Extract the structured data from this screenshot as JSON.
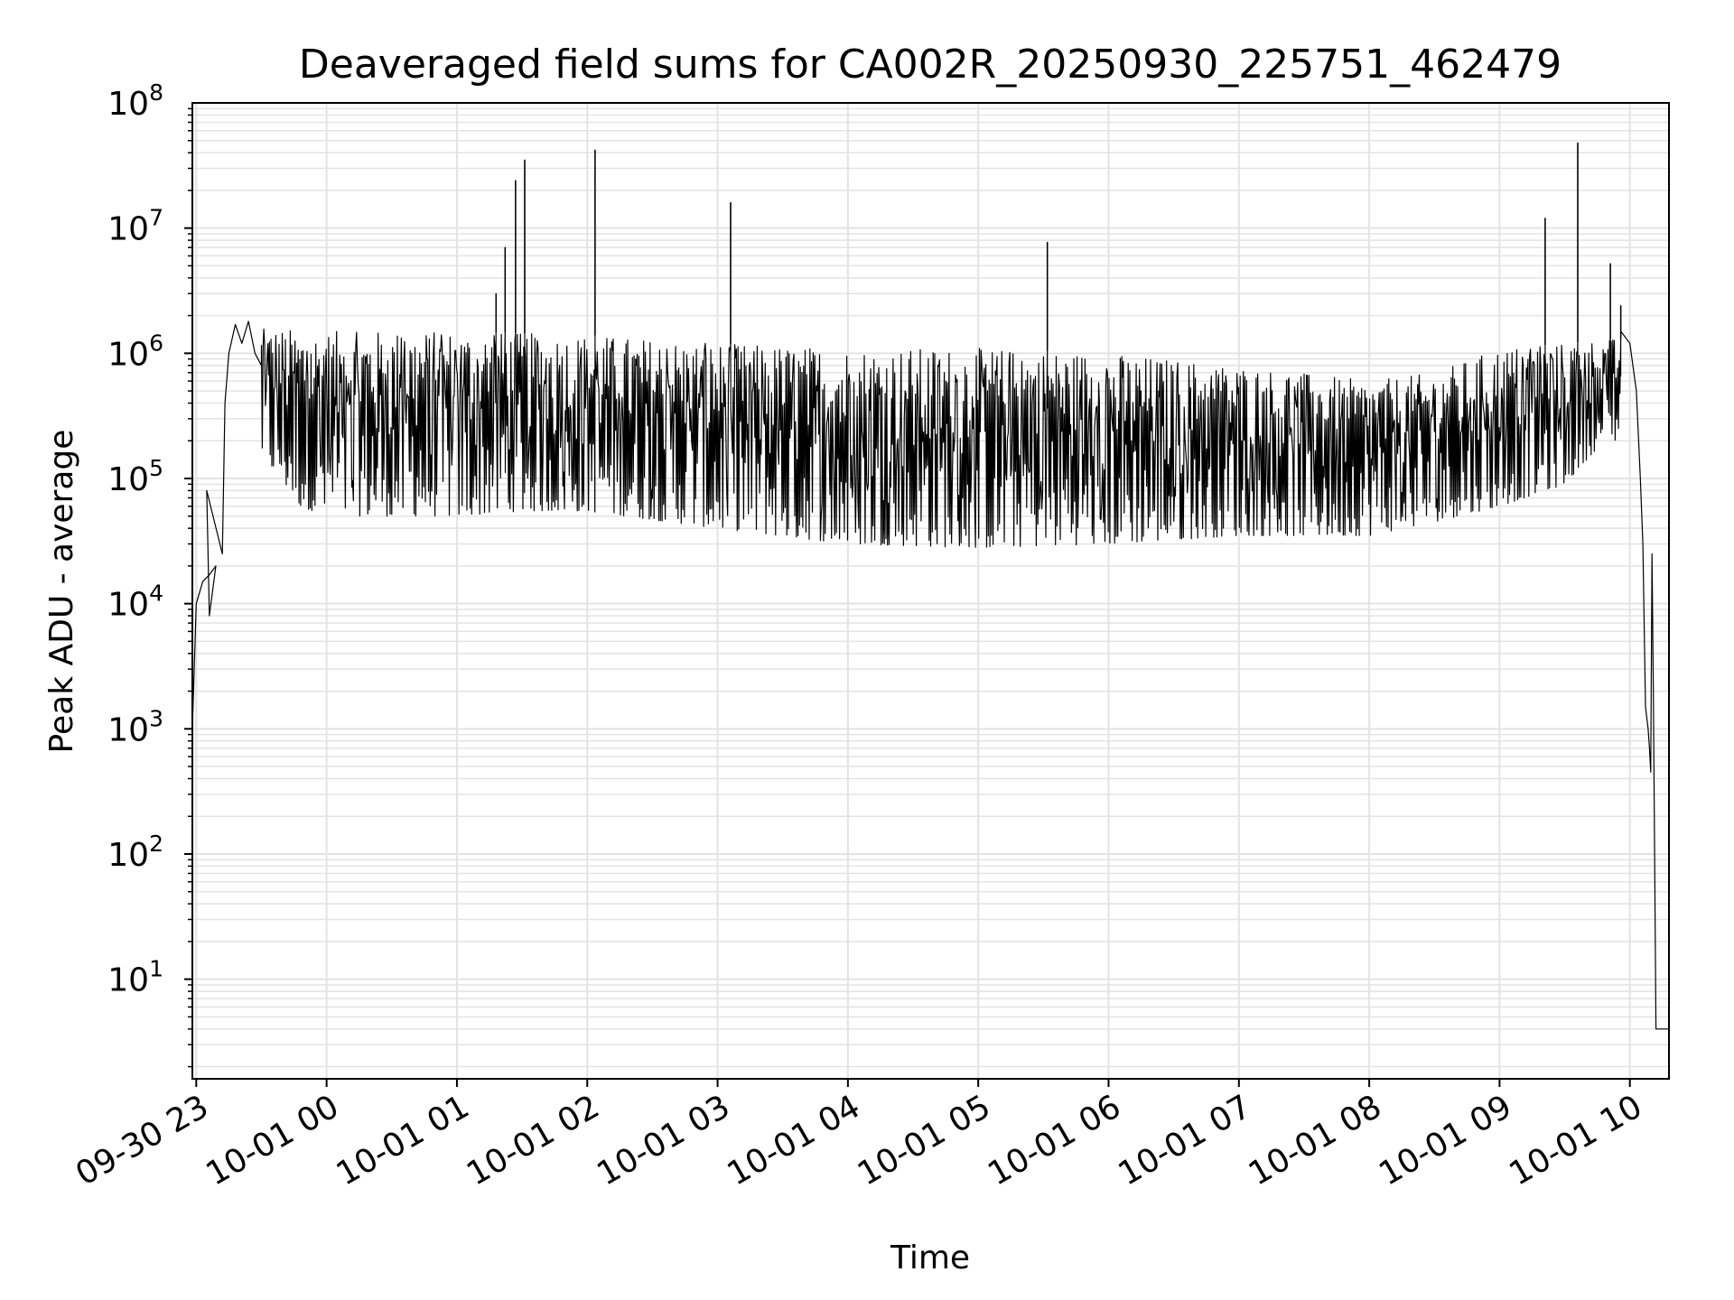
{
  "chart_data": {
    "type": "line",
    "title": "Deaveraged field sums for CA002R_20250930_225751_462479",
    "xlabel": "Time",
    "ylabel": "Peak ADU - average",
    "yscale": "log",
    "ylim": [
      1.6,
      100000000
    ],
    "xlim_hours": [
      -0.03,
      11.3
    ],
    "x_axis_origin": "2025-09-30 23:00",
    "grid": true,
    "legend": "none",
    "line_color": "#000000",
    "grid_color": "#e3e3e3",
    "x_ticks": [
      {
        "hour": 0,
        "label": "09-30 23"
      },
      {
        "hour": 1,
        "label": "10-01 00"
      },
      {
        "hour": 2,
        "label": "10-01 01"
      },
      {
        "hour": 3,
        "label": "10-01 02"
      },
      {
        "hour": 4,
        "label": "10-01 03"
      },
      {
        "hour": 5,
        "label": "10-01 04"
      },
      {
        "hour": 6,
        "label": "10-01 05"
      },
      {
        "hour": 7,
        "label": "10-01 06"
      },
      {
        "hour": 8,
        "label": "10-01 07"
      },
      {
        "hour": 9,
        "label": "10-01 08"
      },
      {
        "hour": 10,
        "label": "10-01 09"
      },
      {
        "hour": 11,
        "label": "10-01 10"
      }
    ],
    "y_ticks": [
      {
        "value": 10,
        "base": "10",
        "exp": "1"
      },
      {
        "value": 100,
        "base": "10",
        "exp": "2"
      },
      {
        "value": 1000,
        "base": "10",
        "exp": "3"
      },
      {
        "value": 10000,
        "base": "10",
        "exp": "4"
      },
      {
        "value": 100000,
        "base": "10",
        "exp": "5"
      },
      {
        "value": 1000000,
        "base": "10",
        "exp": "6"
      },
      {
        "value": 10000000,
        "base": "10",
        "exp": "7"
      },
      {
        "value": 100000000,
        "base": "10",
        "exp": "8"
      }
    ],
    "band": {
      "description": "dense oscillation between a lower and upper envelope, estimated",
      "upper": [
        [
          0.2,
          1500000
        ],
        [
          0.5,
          1600000
        ],
        [
          1.0,
          1500000
        ],
        [
          2.0,
          1500000
        ],
        [
          3.0,
          1400000
        ],
        [
          3.5,
          1300000
        ],
        [
          4.0,
          1200000
        ],
        [
          5.0,
          1100000
        ],
        [
          6.0,
          1100000
        ],
        [
          7.0,
          1000000
        ],
        [
          8.0,
          800000
        ],
        [
          9.0,
          600000
        ],
        [
          9.5,
          700000
        ],
        [
          10.0,
          1100000
        ],
        [
          10.5,
          1200000
        ],
        [
          10.8,
          1300000
        ]
      ],
      "lower": [
        [
          0.2,
          400000
        ],
        [
          0.5,
          150000
        ],
        [
          0.8,
          60000
        ],
        [
          1.0,
          50000
        ],
        [
          2.0,
          50000
        ],
        [
          2.5,
          55000
        ],
        [
          3.0,
          55000
        ],
        [
          4.0,
          40000
        ],
        [
          5.0,
          30000
        ],
        [
          6.0,
          28000
        ],
        [
          7.0,
          30000
        ],
        [
          8.0,
          35000
        ],
        [
          9.0,
          35000
        ],
        [
          9.5,
          45000
        ],
        [
          10.0,
          60000
        ],
        [
          10.5,
          90000
        ],
        [
          10.8,
          200000
        ]
      ]
    },
    "key_points": [
      [
        -0.03,
        1000
      ],
      [
        0.0,
        10000
      ],
      [
        0.05,
        15000
      ],
      [
        0.1,
        17000
      ],
      [
        0.15,
        20000
      ],
      [
        0.1,
        8000
      ],
      [
        0.08,
        80000
      ],
      [
        0.2,
        25000
      ],
      [
        0.22,
        400000
      ],
      [
        0.25,
        1000000
      ],
      [
        0.3,
        1700000
      ],
      [
        0.35,
        1200000
      ],
      [
        0.4,
        1800000
      ],
      [
        0.45,
        1000000
      ],
      [
        0.5,
        800000
      ]
    ],
    "spikes": [
      {
        "hour": 2.3,
        "value": 3000000
      },
      {
        "hour": 2.37,
        "value": 7000000
      },
      {
        "hour": 2.45,
        "value": 24000000
      },
      {
        "hour": 2.52,
        "value": 35000000
      },
      {
        "hour": 3.06,
        "value": 42000000
      },
      {
        "hour": 4.1,
        "value": 16000000
      },
      {
        "hour": 6.53,
        "value": 7700000
      },
      {
        "hour": 10.35,
        "value": 12000000
      },
      {
        "hour": 10.6,
        "value": 48000000
      },
      {
        "hour": 10.85,
        "value": 5200000
      },
      {
        "hour": 10.93,
        "value": 2400000
      }
    ],
    "tail": [
      [
        10.93,
        1500000
      ],
      [
        11.0,
        1200000
      ],
      [
        11.05,
        500000
      ],
      [
        11.08,
        100000
      ],
      [
        11.1,
        30000
      ],
      [
        11.12,
        1500
      ],
      [
        11.14,
        1000
      ],
      [
        11.15,
        700
      ],
      [
        11.16,
        450
      ],
      [
        11.17,
        25000
      ],
      [
        11.18,
        2000
      ],
      [
        11.2,
        4
      ],
      [
        11.3,
        4
      ]
    ]
  }
}
